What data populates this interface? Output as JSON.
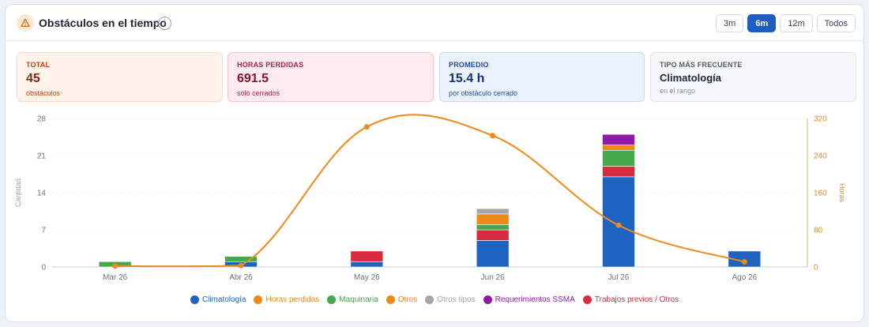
{
  "header": {
    "title": "Obstáculos en el tiempo",
    "info": "i"
  },
  "ranges": [
    {
      "label": "3m",
      "active": false
    },
    {
      "label": "6m",
      "active": true
    },
    {
      "label": "12m",
      "active": false
    },
    {
      "label": "Todos",
      "active": false
    }
  ],
  "stats": [
    {
      "label": "TOTAL",
      "value": "45",
      "sub": "obstáculos"
    },
    {
      "label": "HORAS PERDIDAS",
      "value": "691.5",
      "sub": "solo cerrados"
    },
    {
      "label": "PROMEDIO",
      "value": "15.4 h",
      "sub": "por obstáculo cerrado"
    },
    {
      "label": "TIPO MÁS FRECUENTE",
      "value": "Climatología",
      "sub": "en el rango"
    }
  ],
  "chart_data": {
    "type": "bar",
    "stacked": true,
    "categories": [
      "Mar 26",
      "Abr 26",
      "May 26",
      "Jun 26",
      "Jul 26",
      "Ago 26"
    ],
    "ylabel": "Cantidad",
    "y2label": "Horas",
    "ylim": [
      0,
      28
    ],
    "y2lim": [
      0,
      320
    ],
    "yticks": [
      0,
      7,
      14,
      21,
      28
    ],
    "y2ticks": [
      0,
      80,
      160,
      240,
      320
    ],
    "series": [
      {
        "name": "Climatología",
        "color": "#1f63c2",
        "values": [
          0,
          1,
          1,
          5,
          17,
          3
        ]
      },
      {
        "name": "Trabajos previos / Otros",
        "color": "#d62c3f",
        "values": [
          0,
          0,
          2,
          2,
          2,
          0
        ]
      },
      {
        "name": "Maquinaria",
        "color": "#45a84b",
        "values": [
          1,
          1,
          0,
          1,
          3,
          0
        ]
      },
      {
        "name": "Otros",
        "color": "#ef8a17",
        "values": [
          0,
          0,
          0,
          2,
          1,
          0
        ]
      },
      {
        "name": "Otros tipos",
        "color": "#a4a6ad",
        "values": [
          0,
          0,
          0,
          1,
          0,
          0
        ]
      },
      {
        "name": "Requerimientos SSMA",
        "color": "#8e1aa8",
        "values": [
          0,
          0,
          0,
          0,
          2,
          0
        ]
      }
    ],
    "line": {
      "name": "Horas perdidas",
      "color": "#ef8a17",
      "values": [
        2,
        3,
        302,
        283,
        90,
        11
      ]
    },
    "legend": [
      {
        "name": "Climatología",
        "color": "#1f63c2"
      },
      {
        "name": "Horas perdidas",
        "color": "#ef8a17"
      },
      {
        "name": "Maquinaria",
        "color": "#45a84b"
      },
      {
        "name": "Otros",
        "color": "#ef8a17"
      },
      {
        "name": "Otros tipos",
        "color": "#a4a6ad"
      },
      {
        "name": "Requerimientos SSMA",
        "color": "#8e1aa8"
      },
      {
        "name": "Trabajos previos / Otros",
        "color": "#d62c3f"
      }
    ]
  },
  "colors": {
    "accent": "#1d5fbf",
    "axis_right": "#d98a2e"
  }
}
